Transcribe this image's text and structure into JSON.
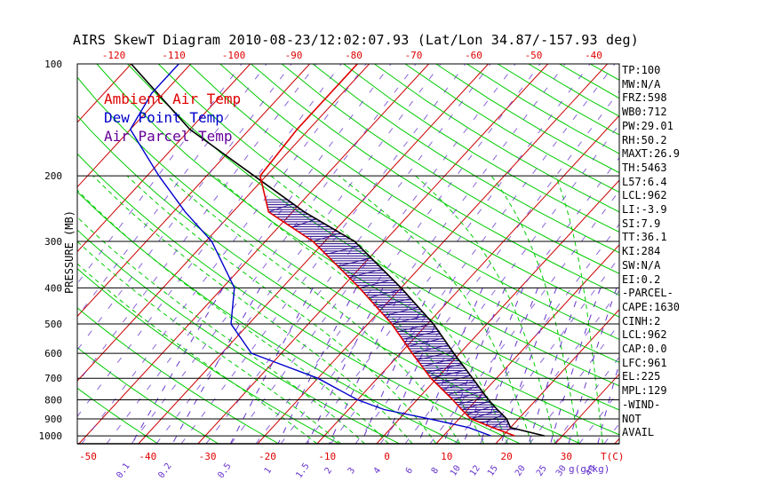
{
  "title": "AIRS SkewT Diagram 2010-08-23/12:02:07.93 (Lat/Lon 34.87/-157.93 deg)",
  "colors": {
    "ambient": "#e00000",
    "dewpoint": "#0000cc",
    "parcel": "#000000",
    "isotherm": "#cc0000",
    "dry_adiabat": "#00cc00",
    "moist_adiabat": "#00cc00",
    "mixing_ratio": "#6633cc",
    "cape_hatch": "#220088",
    "isobar": "#000000"
  },
  "chart_data": {
    "type": "skewt",
    "ylabel": "PRESSURE (MB)",
    "pressure_ticks": [
      100,
      200,
      300,
      400,
      500,
      600,
      700,
      800,
      900,
      1000
    ],
    "top_temp_ticks": [
      -120,
      -110,
      -100,
      -90,
      -80,
      -70,
      -60,
      -50,
      -40
    ],
    "bottom_temp_ticks": [
      -50,
      -40,
      -30,
      -20,
      -10,
      0,
      10,
      20,
      30
    ],
    "bottom_axis_label": "T(C)",
    "mixing_ratio_labels": [
      "0.1",
      "0.2",
      "0.5",
      "1",
      "1.5",
      "2",
      "3",
      "4",
      "6",
      "8",
      "10",
      "12",
      "15",
      "20",
      "25",
      "30",
      "40"
    ],
    "mixing_ratio_axis_label": "g(g/kg)",
    "legend": [
      {
        "label": "Ambient Air Temp",
        "color": "#e00000"
      },
      {
        "label": "Dew Point Temp",
        "color": "#0000cc"
      },
      {
        "label": "Air Parcel Temp",
        "color": "#660099"
      }
    ],
    "ambient_temp": [
      {
        "p": 1000,
        "t": 22
      },
      {
        "p": 950,
        "t": 17
      },
      {
        "p": 900,
        "t": 12
      },
      {
        "p": 850,
        "t": 9
      },
      {
        "p": 800,
        "t": 6
      },
      {
        "p": 700,
        "t": -1
      },
      {
        "p": 600,
        "t": -8
      },
      {
        "p": 500,
        "t": -16
      },
      {
        "p": 400,
        "t": -27
      },
      {
        "p": 300,
        "t": -42
      },
      {
        "p": 250,
        "t": -54
      },
      {
        "p": 200,
        "t": -61
      },
      {
        "p": 150,
        "t": -62
      },
      {
        "p": 100,
        "t": -62
      }
    ],
    "dewpoint_temp": [
      {
        "p": 1000,
        "t": 18
      },
      {
        "p": 950,
        "t": 13
      },
      {
        "p": 900,
        "t": 5
      },
      {
        "p": 850,
        "t": -4
      },
      {
        "p": 800,
        "t": -10
      },
      {
        "p": 700,
        "t": -20
      },
      {
        "p": 600,
        "t": -35
      },
      {
        "p": 500,
        "t": -43
      },
      {
        "p": 400,
        "t": -48
      },
      {
        "p": 300,
        "t": -59
      },
      {
        "p": 250,
        "t": -68
      },
      {
        "p": 200,
        "t": -78
      },
      {
        "p": 150,
        "t": -90
      },
      {
        "p": 120,
        "t": -92
      },
      {
        "p": 100,
        "t": -92
      }
    ],
    "parcel_temp": [
      {
        "p": 1000,
        "t": 27
      },
      {
        "p": 950,
        "t": 20
      },
      {
        "p": 900,
        "t": 18
      },
      {
        "p": 850,
        "t": 15
      },
      {
        "p": 800,
        "t": 12
      },
      {
        "p": 700,
        "t": 6
      },
      {
        "p": 600,
        "t": -1
      },
      {
        "p": 500,
        "t": -9
      },
      {
        "p": 400,
        "t": -20
      },
      {
        "p": 300,
        "t": -35
      },
      {
        "p": 250,
        "t": -48
      },
      {
        "p": 200,
        "t": -62
      },
      {
        "p": 150,
        "t": -80
      },
      {
        "p": 100,
        "t": -100
      }
    ],
    "indices": [
      "TP:100",
      "MW:N/A",
      "FRZ:598",
      "WB0:712",
      "PW:29.01",
      "RH:50.2",
      "MAXT:26.9",
      "TH:5463",
      "L57:6.4",
      "LCL:962",
      "LI:-3.9",
      "SI:7.9",
      "TT:36.1",
      "KI:284",
      "SW:N/A",
      "EI:0.2",
      "-PARCEL-",
      "CAPE:1630",
      "CINH:2",
      "LCL:962",
      "CAP:0.0",
      "LFC:961",
      "EL:225",
      "MPL:129",
      "-WIND-",
      "NOT",
      "AVAIL"
    ]
  }
}
